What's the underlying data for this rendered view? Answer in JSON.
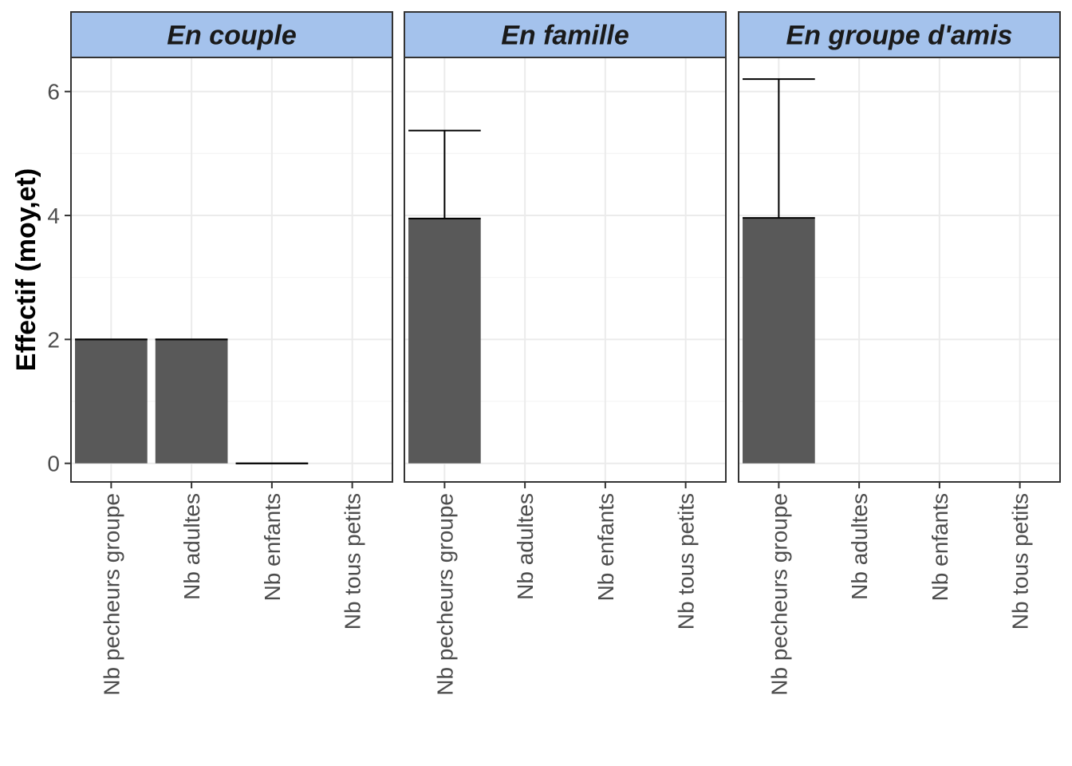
{
  "chart_data": {
    "type": "bar",
    "facet_by": "group type",
    "ylabel": "Effectif (moy,et)",
    "xlabel": "",
    "ylim": [
      -0.3,
      6.55
    ],
    "y_ticks": [
      0,
      2,
      4,
      6
    ],
    "grid": true,
    "categories": [
      "Nb pecheurs groupe",
      "Nb adultes",
      "Nb enfants",
      "Nb tous petits"
    ],
    "facets": [
      {
        "label": "En couple",
        "values": [
          2.0,
          2.0,
          0.0,
          null
        ],
        "error_upper": [
          2.0,
          2.0,
          0.0,
          null
        ]
      },
      {
        "label": "En famille",
        "values": [
          3.95,
          null,
          null,
          null
        ],
        "error_upper": [
          5.37,
          null,
          null,
          null
        ]
      },
      {
        "label": "En groupe d'amis",
        "values": [
          3.96,
          null,
          null,
          null
        ],
        "error_upper": [
          6.2,
          null,
          null,
          null
        ]
      }
    ],
    "colors": {
      "bar_fill": "#595959",
      "strip_fill": "#a4c2ec",
      "panel_border": "#333333",
      "grid_major": "#ebebeb",
      "grid_minor": "#f5f5f5",
      "errorbar": "#000000"
    }
  }
}
